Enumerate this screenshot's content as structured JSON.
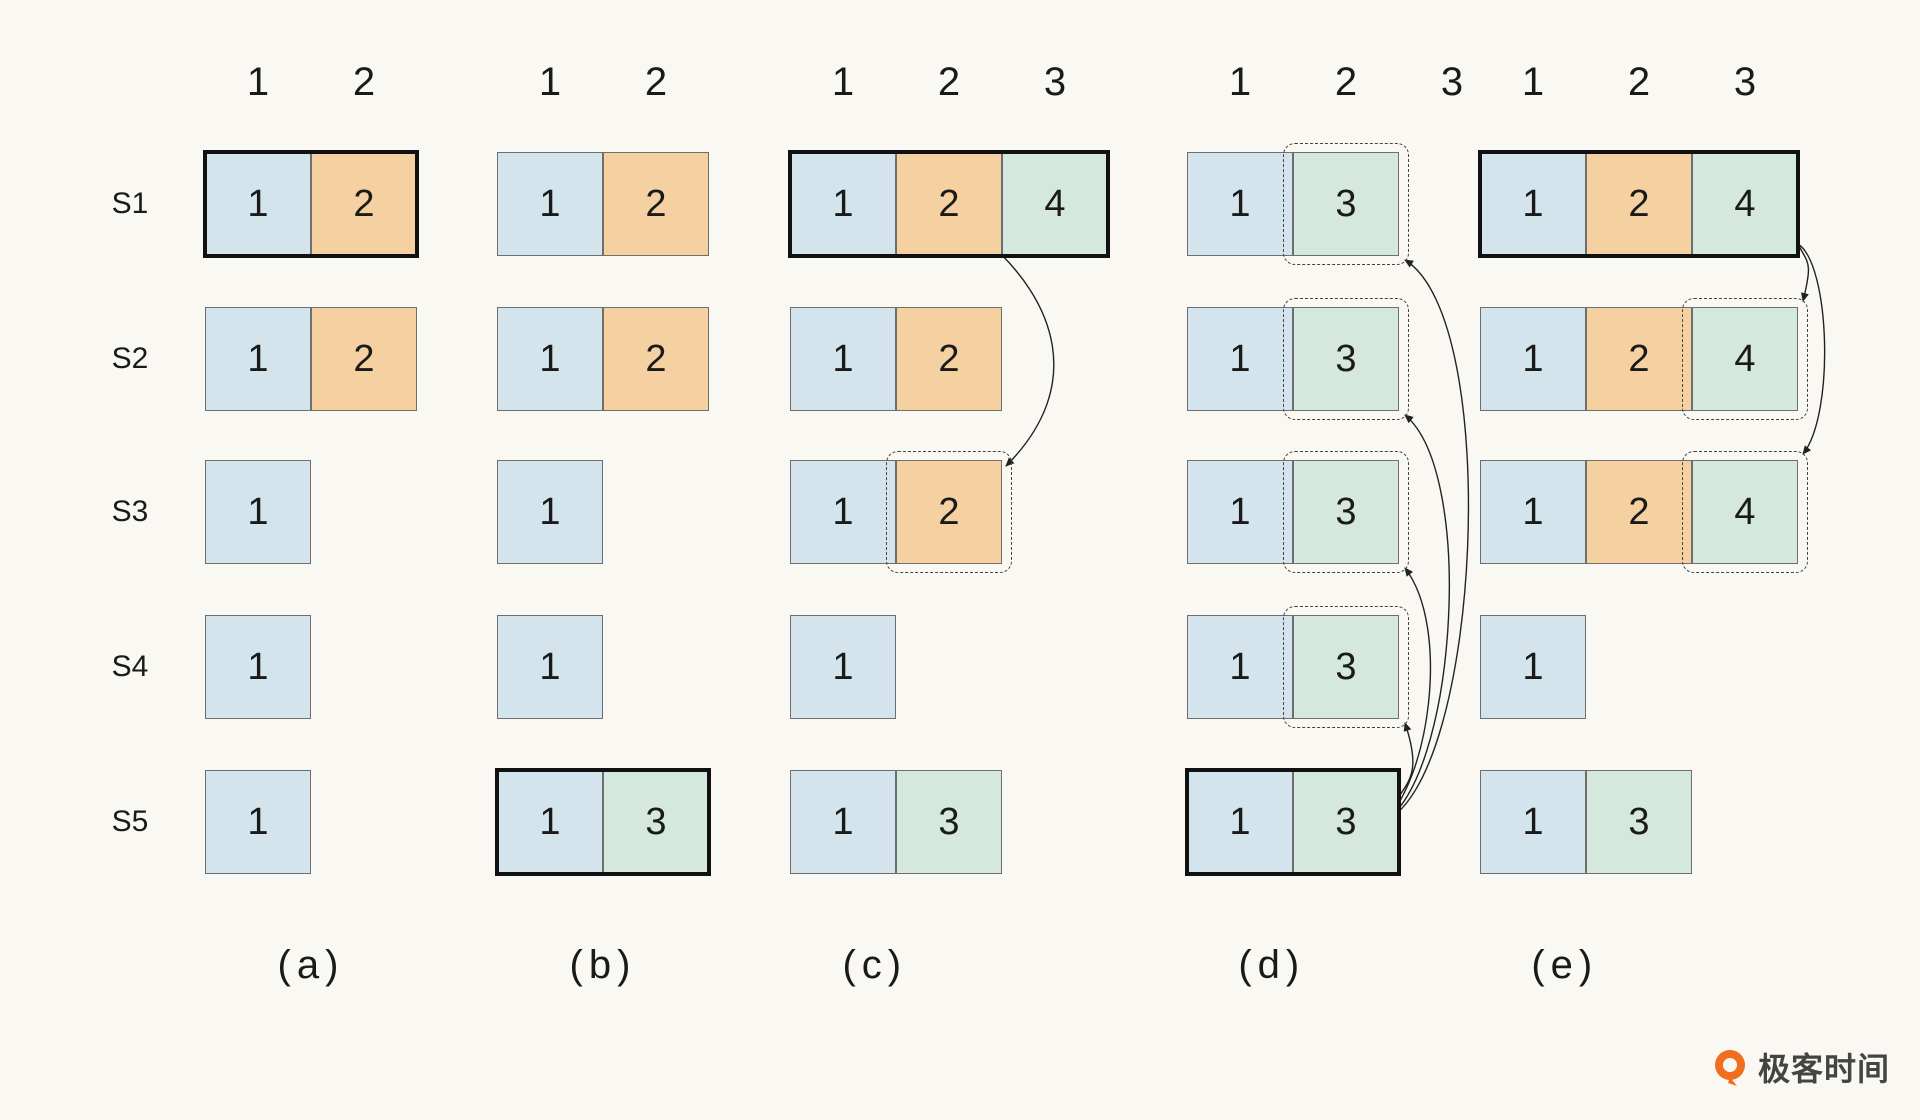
{
  "colors": {
    "term1": "#d3e4ec",
    "term2": "#f5d0a1",
    "term3": "#d4e8dd",
    "term4": "#d4e8dd",
    "leader_border": "#111111",
    "brand": "#f06f1e"
  },
  "rows": [
    "S1",
    "S2",
    "S3",
    "S4",
    "S5"
  ],
  "panels": [
    {
      "id": "a",
      "caption": "(a)",
      "index_headers": [
        "1",
        "2"
      ],
      "logs": [
        {
          "server": "S1",
          "entries": [
            1,
            2
          ],
          "leader": true
        },
        {
          "server": "S2",
          "entries": [
            1,
            2
          ]
        },
        {
          "server": "S3",
          "entries": [
            1
          ]
        },
        {
          "server": "S4",
          "entries": [
            1
          ]
        },
        {
          "server": "S5",
          "entries": [
            1
          ]
        }
      ]
    },
    {
      "id": "b",
      "caption": "(b)",
      "index_headers": [
        "1",
        "2"
      ],
      "logs": [
        {
          "server": "S1",
          "entries": [
            1,
            2
          ]
        },
        {
          "server": "S2",
          "entries": [
            1,
            2
          ]
        },
        {
          "server": "S3",
          "entries": [
            1
          ]
        },
        {
          "server": "S4",
          "entries": [
            1
          ]
        },
        {
          "server": "S5",
          "entries": [
            1,
            3
          ],
          "leader": true
        }
      ]
    },
    {
      "id": "c",
      "caption": "(c)",
      "index_headers": [
        "1",
        "2",
        "3"
      ],
      "logs": [
        {
          "server": "S1",
          "entries": [
            1,
            2,
            4
          ],
          "leader": true
        },
        {
          "server": "S2",
          "entries": [
            1,
            2
          ]
        },
        {
          "server": "S3",
          "entries": [
            1,
            2
          ],
          "replicated_index": 2
        },
        {
          "server": "S4",
          "entries": [
            1
          ]
        },
        {
          "server": "S5",
          "entries": [
            1,
            3
          ]
        }
      ]
    },
    {
      "id": "d",
      "caption": "(d)",
      "index_headers": [
        "1",
        "2",
        "3"
      ],
      "logs": [
        {
          "server": "S1",
          "entries": [
            1,
            3
          ],
          "replicated_index": 2
        },
        {
          "server": "S2",
          "entries": [
            1,
            3
          ],
          "replicated_index": 2
        },
        {
          "server": "S3",
          "entries": [
            1,
            3
          ],
          "replicated_index": 2
        },
        {
          "server": "S4",
          "entries": [
            1,
            3
          ],
          "replicated_index": 2
        },
        {
          "server": "S5",
          "entries": [
            1,
            3
          ],
          "leader": true
        }
      ]
    },
    {
      "id": "e",
      "caption": "(e)",
      "index_headers": [
        "1",
        "2",
        "3"
      ],
      "logs": [
        {
          "server": "S1",
          "entries": [
            1,
            2,
            4
          ],
          "leader": true
        },
        {
          "server": "S2",
          "entries": [
            1,
            2,
            4
          ],
          "replicated_index": 3
        },
        {
          "server": "S3",
          "entries": [
            1,
            2,
            4
          ],
          "replicated_index": 3
        },
        {
          "server": "S4",
          "entries": [
            1
          ]
        },
        {
          "server": "S5",
          "entries": [
            1,
            3
          ]
        }
      ]
    }
  ],
  "logo": {
    "text": "极客时间",
    "icon": "geekbang-q-icon"
  }
}
